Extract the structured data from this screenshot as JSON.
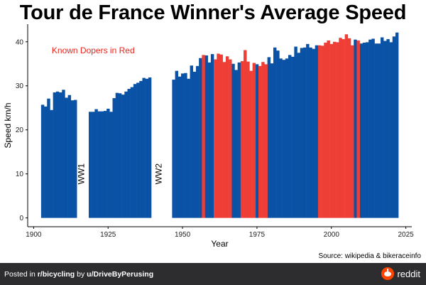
{
  "chart_data": {
    "type": "bar",
    "title": "Tour de France Winner's Average Speed",
    "xlabel": "Year",
    "ylabel": "Speed km/h",
    "xlim": [
      1898,
      2027
    ],
    "ylim": [
      -2,
      44
    ],
    "xticks": [
      1900,
      1925,
      1950,
      1975,
      2000,
      2025
    ],
    "yticks": [
      0,
      10,
      20,
      30,
      40
    ],
    "annotation": "Known Dopers in Red",
    "wartime_labels": [
      {
        "text": "WW1",
        "x": 1917,
        "y": 10
      },
      {
        "text": "WW2",
        "x": 1943,
        "y": 10
      }
    ],
    "source": "Source: wikipedia & bikeraceinfo",
    "colors": {
      "clean": "#0a52a5",
      "doper": "#ef3e36",
      "annotation": "#e8261c"
    },
    "series": [
      {
        "name": "",
        "color": "#0a52a5",
        "points": [
          [
            1903,
            25.7
          ],
          [
            1904,
            25.3
          ],
          [
            1905,
            27.1
          ],
          [
            1906,
            24.5
          ],
          [
            1907,
            28.5
          ],
          [
            1908,
            28.7
          ],
          [
            1909,
            28.5
          ],
          [
            1910,
            29.1
          ],
          [
            1911,
            27.3
          ],
          [
            1912,
            27.9
          ],
          [
            1913,
            26.7
          ],
          [
            1914,
            26.8
          ],
          [
            1919,
            24.1
          ],
          [
            1920,
            24.1
          ],
          [
            1921,
            24.7
          ],
          [
            1922,
            24.2
          ],
          [
            1923,
            24.2
          ],
          [
            1924,
            24.3
          ],
          [
            1925,
            24.8
          ],
          [
            1926,
            24.1
          ],
          [
            1927,
            27.2
          ],
          [
            1928,
            28.4
          ],
          [
            1929,
            28.3
          ],
          [
            1930,
            28.0
          ],
          [
            1931,
            28.7
          ],
          [
            1932,
            29.3
          ],
          [
            1933,
            29.7
          ],
          [
            1934,
            30.4
          ],
          [
            1935,
            30.7
          ],
          [
            1936,
            31.1
          ],
          [
            1937,
            31.8
          ],
          [
            1938,
            31.6
          ],
          [
            1939,
            31.9
          ],
          [
            1947,
            31.4
          ],
          [
            1948,
            33.4
          ],
          [
            1949,
            32.1
          ],
          [
            1950,
            32.8
          ],
          [
            1951,
            32.9
          ],
          [
            1952,
            31.6
          ],
          [
            1953,
            34.6
          ],
          [
            1954,
            33.2
          ],
          [
            1955,
            34.5
          ],
          [
            1956,
            36.3
          ],
          [
            1958,
            36.9
          ],
          [
            1959,
            35.3
          ],
          [
            1960,
            37.2
          ],
          [
            1967,
            35.0
          ],
          [
            1968,
            33.6
          ],
          [
            1969,
            35.3
          ],
          [
            1975,
            34.9
          ],
          [
            1979,
            36.5
          ],
          [
            1980,
            35.1
          ],
          [
            1981,
            38.7
          ],
          [
            1982,
            38.0
          ],
          [
            1983,
            36.2
          ],
          [
            1984,
            35.9
          ],
          [
            1985,
            36.2
          ],
          [
            1986,
            37.0
          ],
          [
            1987,
            36.6
          ],
          [
            1988,
            38.9
          ],
          [
            1989,
            37.5
          ],
          [
            1990,
            38.6
          ],
          [
            1991,
            38.7
          ],
          [
            1992,
            39.5
          ],
          [
            1993,
            38.7
          ],
          [
            1994,
            38.4
          ],
          [
            1995,
            39.2
          ],
          [
            2008,
            40.5
          ],
          [
            2010,
            39.6
          ],
          [
            2011,
            39.8
          ],
          [
            2012,
            39.9
          ],
          [
            2013,
            40.5
          ],
          [
            2014,
            40.7
          ],
          [
            2015,
            39.6
          ],
          [
            2016,
            39.6
          ],
          [
            2017,
            41.0
          ],
          [
            2018,
            40.2
          ],
          [
            2019,
            40.6
          ],
          [
            2020,
            39.9
          ],
          [
            2021,
            41.2
          ],
          [
            2022,
            42.1
          ]
        ]
      },
      {
        "name": "",
        "color": "#ef3e36",
        "points": [
          [
            1957,
            37.0
          ],
          [
            1961,
            36.0
          ],
          [
            1962,
            37.3
          ],
          [
            1963,
            37.1
          ],
          [
            1964,
            35.4
          ],
          [
            1965,
            36.7
          ],
          [
            1966,
            36.0
          ],
          [
            1970,
            35.6
          ],
          [
            1971,
            38.1
          ],
          [
            1972,
            35.5
          ],
          [
            1973,
            33.4
          ],
          [
            1974,
            35.2
          ],
          [
            1976,
            34.5
          ],
          [
            1977,
            35.4
          ],
          [
            1978,
            34.9
          ],
          [
            1996,
            39.2
          ],
          [
            1997,
            39.1
          ],
          [
            1998,
            39.8
          ],
          [
            1999,
            40.3
          ],
          [
            2000,
            39.5
          ],
          [
            2001,
            40.0
          ],
          [
            2002,
            39.9
          ],
          [
            2003,
            40.9
          ],
          [
            2004,
            40.6
          ],
          [
            2005,
            41.7
          ],
          [
            2006,
            40.8
          ],
          [
            2007,
            39.2
          ],
          [
            2009,
            40.3
          ]
        ]
      }
    ]
  },
  "footer": {
    "posted_prefix": "Posted in ",
    "subreddit": "r/bicycling",
    "by": " by ",
    "user": "u/DriveByPerusing",
    "brand": "reddit"
  }
}
